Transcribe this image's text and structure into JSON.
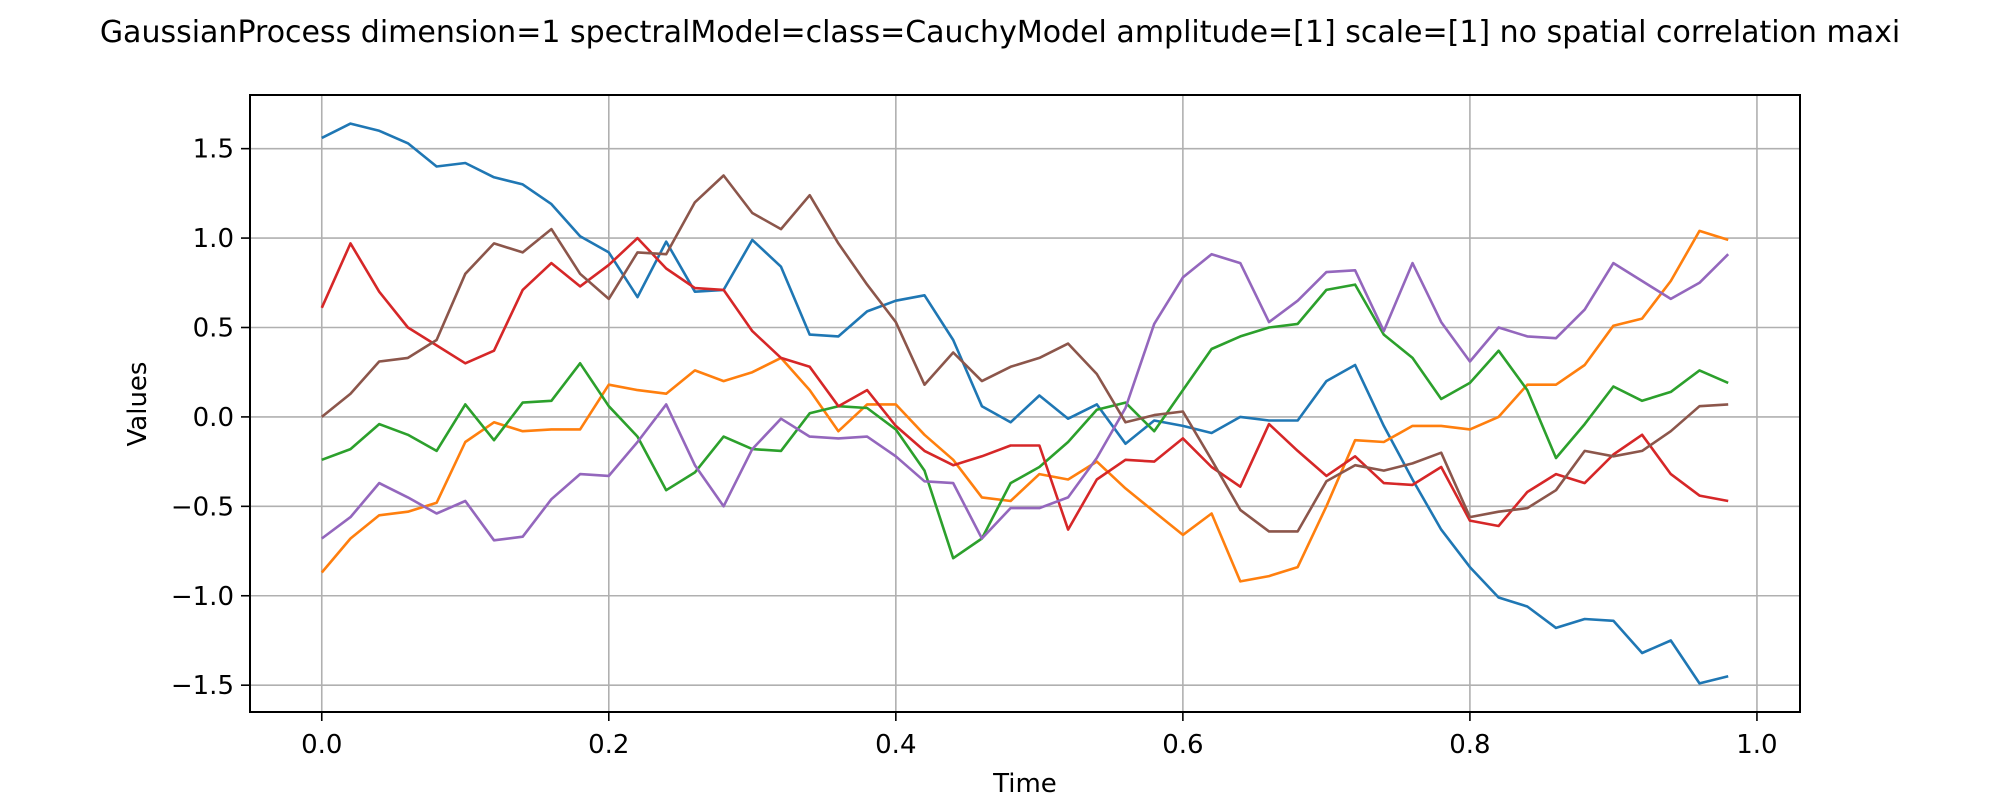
{
  "chart_data": {
    "type": "line",
    "title": "GaussianProcess dimension=1 spectralModel=class=CauchyModel amplitude=[1] scale=[1] no spatial correlation maxi",
    "xlabel": "Time",
    "ylabel": "Values",
    "xlim": [
      -0.05,
      1.03
    ],
    "ylim": [
      -1.65,
      1.8
    ],
    "grid": true,
    "xticks": [
      "0.0",
      "0.2",
      "0.4",
      "0.6",
      "0.8",
      "1.0"
    ],
    "yticks": [
      "1.5",
      "1.0",
      "0.5",
      "0.0",
      "−0.5",
      "−1.0",
      "−1.5"
    ],
    "x": [
      0.0,
      0.02,
      0.04,
      0.06,
      0.08,
      0.1,
      0.12,
      0.14,
      0.16,
      0.18,
      0.2,
      0.22,
      0.24,
      0.26,
      0.28,
      0.3,
      0.32,
      0.34,
      0.36,
      0.38,
      0.4,
      0.42,
      0.44,
      0.46,
      0.48,
      0.5,
      0.52,
      0.54,
      0.56,
      0.58,
      0.6,
      0.62,
      0.64,
      0.66,
      0.68,
      0.7,
      0.72,
      0.74,
      0.76,
      0.78,
      0.8,
      0.82,
      0.84,
      0.86,
      0.88,
      0.9,
      0.92,
      0.94,
      0.96,
      0.98
    ],
    "series": [
      {
        "color": "#1f77b4",
        "values": [
          1.56,
          1.64,
          1.6,
          1.53,
          1.4,
          1.42,
          1.34,
          1.3,
          1.19,
          1.01,
          0.92,
          0.67,
          0.98,
          0.7,
          0.71,
          0.99,
          0.84,
          0.46,
          0.45,
          0.59,
          0.65,
          0.68,
          0.43,
          0.06,
          -0.03,
          0.12,
          -0.01,
          0.07,
          -0.15,
          -0.02,
          -0.05,
          -0.09,
          0.0,
          -0.02,
          -0.02,
          0.2,
          0.29,
          -0.05,
          -0.35,
          -0.63,
          -0.84,
          -1.01,
          -1.06,
          -1.18,
          -1.13,
          -1.14,
          -1.32,
          -1.25,
          -1.49,
          -1.45
        ]
      },
      {
        "color": "#ff7f0e",
        "values": [
          -0.87,
          -0.68,
          -0.55,
          -0.53,
          -0.48,
          -0.14,
          -0.03,
          -0.08,
          -0.07,
          -0.07,
          0.18,
          0.15,
          0.13,
          0.26,
          0.2,
          0.25,
          0.33,
          0.15,
          -0.08,
          0.07,
          0.07,
          -0.1,
          -0.24,
          -0.45,
          -0.47,
          -0.32,
          -0.35,
          -0.25,
          -0.4,
          -0.53,
          -0.66,
          -0.54,
          -0.92,
          -0.89,
          -0.84,
          -0.5,
          -0.13,
          -0.14,
          -0.05,
          -0.05,
          -0.07,
          0.0,
          0.18,
          0.18,
          0.29,
          0.51,
          0.55,
          0.76,
          1.04,
          0.99
        ]
      },
      {
        "color": "#2ca02c",
        "values": [
          -0.24,
          -0.18,
          -0.04,
          -0.1,
          -0.19,
          0.07,
          -0.13,
          0.08,
          0.09,
          0.3,
          0.06,
          -0.11,
          -0.41,
          -0.31,
          -0.11,
          -0.18,
          -0.19,
          0.02,
          0.06,
          0.05,
          -0.07,
          -0.3,
          -0.79,
          -0.68,
          -0.37,
          -0.28,
          -0.14,
          0.04,
          0.08,
          -0.08,
          0.15,
          0.38,
          0.45,
          0.5,
          0.52,
          0.71,
          0.74,
          0.46,
          0.33,
          0.1,
          0.19,
          0.37,
          0.15,
          -0.23,
          -0.04,
          0.17,
          0.09,
          0.14,
          0.26,
          0.19
        ]
      },
      {
        "color": "#d62728",
        "values": [
          0.61,
          0.97,
          0.7,
          0.5,
          0.4,
          0.3,
          0.37,
          0.71,
          0.86,
          0.73,
          0.85,
          1.0,
          0.83,
          0.72,
          0.71,
          0.48,
          0.33,
          0.28,
          0.06,
          0.15,
          -0.05,
          -0.19,
          -0.27,
          -0.22,
          -0.16,
          -0.16,
          -0.63,
          -0.35,
          -0.24,
          -0.25,
          -0.12,
          -0.28,
          -0.39,
          -0.04,
          -0.19,
          -0.33,
          -0.22,
          -0.37,
          -0.38,
          -0.28,
          -0.58,
          -0.61,
          -0.42,
          -0.32,
          -0.37,
          -0.21,
          -0.1,
          -0.32,
          -0.44,
          -0.47
        ]
      },
      {
        "color": "#9467bd",
        "values": [
          -0.68,
          -0.56,
          -0.37,
          -0.45,
          -0.54,
          -0.47,
          -0.69,
          -0.67,
          -0.46,
          -0.32,
          -0.33,
          -0.14,
          0.07,
          -0.27,
          -0.5,
          -0.18,
          -0.01,
          -0.11,
          -0.12,
          -0.11,
          -0.22,
          -0.36,
          -0.37,
          -0.68,
          -0.51,
          -0.51,
          -0.45,
          -0.23,
          0.05,
          0.52,
          0.78,
          0.91,
          0.86,
          0.53,
          0.65,
          0.81,
          0.82,
          0.48,
          0.86,
          0.53,
          0.31,
          0.5,
          0.45,
          0.44,
          0.6,
          0.86,
          0.76,
          0.66,
          0.75,
          0.91
        ]
      },
      {
        "color": "#8c564b",
        "values": [
          0.0,
          0.13,
          0.31,
          0.33,
          0.43,
          0.8,
          0.97,
          0.92,
          1.05,
          0.8,
          0.66,
          0.92,
          0.91,
          1.2,
          1.35,
          1.14,
          1.05,
          1.24,
          0.97,
          0.74,
          0.53,
          0.18,
          0.36,
          0.2,
          0.28,
          0.33,
          0.41,
          0.24,
          -0.03,
          0.01,
          0.03,
          -0.24,
          -0.52,
          -0.64,
          -0.64,
          -0.36,
          -0.27,
          -0.3,
          -0.26,
          -0.2,
          -0.56,
          -0.53,
          -0.51,
          -0.41,
          -0.19,
          -0.22,
          -0.19,
          -0.08,
          0.06,
          0.07
        ]
      }
    ]
  }
}
